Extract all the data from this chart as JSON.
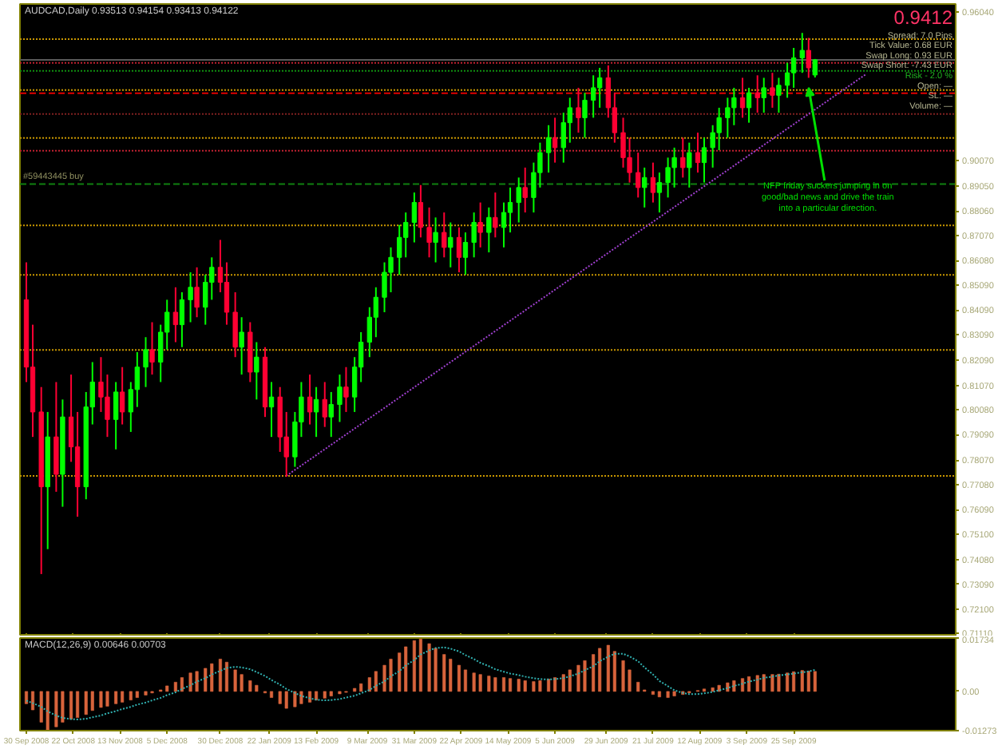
{
  "chart_data": [
    {
      "type": "candlestick",
      "title": "AUDCAD,Daily 0.93513 0.94154 0.93413 0.94122",
      "x": [
        "2008-09-30",
        "2008-10-03",
        "2008-10-07",
        "2008-10-10",
        "2008-10-14",
        "2008-10-17",
        "2008-10-21",
        "2008-10-24",
        "2008-10-28",
        "2008-10-31",
        "2008-11-04",
        "2008-11-07",
        "2008-11-11",
        "2008-11-14",
        "2008-11-18",
        "2008-11-21",
        "2008-11-25",
        "2008-11-28",
        "2008-12-02",
        "2008-12-05",
        "2008-12-09",
        "2008-12-12",
        "2008-12-16",
        "2008-12-19",
        "2008-12-23",
        "2008-12-26",
        "2008-12-30",
        "2009-01-02",
        "2009-01-06",
        "2009-01-09",
        "2009-01-13",
        "2009-01-16",
        "2009-01-20",
        "2009-01-23",
        "2009-01-27",
        "2009-01-30",
        "2009-02-03",
        "2009-02-06",
        "2009-02-10",
        "2009-02-13",
        "2009-02-17",
        "2009-02-20",
        "2009-02-24",
        "2009-02-27",
        "2009-03-03",
        "2009-03-06",
        "2009-03-10",
        "2009-03-13",
        "2009-03-17",
        "2009-03-20",
        "2009-03-24",
        "2009-03-27",
        "2009-03-31",
        "2009-04-03",
        "2009-04-07",
        "2009-04-10",
        "2009-04-14",
        "2009-04-17",
        "2009-04-21",
        "2009-04-24",
        "2009-04-28",
        "2009-05-01",
        "2009-05-05",
        "2009-05-08",
        "2009-05-12",
        "2009-05-15",
        "2009-05-19",
        "2009-05-22",
        "2009-05-26",
        "2009-05-29",
        "2009-06-02",
        "2009-06-05",
        "2009-06-09",
        "2009-06-12",
        "2009-06-16",
        "2009-06-19",
        "2009-06-23",
        "2009-06-26",
        "2009-06-30",
        "2009-07-03",
        "2009-07-07",
        "2009-07-10",
        "2009-07-14",
        "2009-07-17",
        "2009-07-21",
        "2009-07-24",
        "2009-07-28",
        "2009-07-31",
        "2009-08-04",
        "2009-08-07",
        "2009-08-11",
        "2009-08-14",
        "2009-08-18",
        "2009-08-21",
        "2009-08-25",
        "2009-08-28",
        "2009-09-01",
        "2009-09-04",
        "2009-09-08",
        "2009-09-11",
        "2009-09-15",
        "2009-09-18",
        "2009-09-22",
        "2009-09-25",
        "2009-09-29",
        "2009-10-02",
        "2009-10-05"
      ],
      "ohlc": [
        [
          0.845,
          0.86,
          0.812,
          0.818
        ],
        [
          0.818,
          0.835,
          0.79,
          0.8
        ],
        [
          0.8,
          0.81,
          0.735,
          0.77
        ],
        [
          0.77,
          0.8,
          0.745,
          0.79
        ],
        [
          0.79,
          0.812,
          0.768,
          0.775
        ],
        [
          0.775,
          0.805,
          0.762,
          0.798
        ],
        [
          0.798,
          0.815,
          0.78,
          0.786
        ],
        [
          0.786,
          0.8,
          0.758,
          0.77
        ],
        [
          0.77,
          0.808,
          0.765,
          0.802
        ],
        [
          0.802,
          0.82,
          0.795,
          0.812
        ],
        [
          0.812,
          0.822,
          0.8,
          0.806
        ],
        [
          0.806,
          0.815,
          0.79,
          0.797
        ],
        [
          0.797,
          0.812,
          0.785,
          0.808
        ],
        [
          0.808,
          0.818,
          0.795,
          0.8
        ],
        [
          0.8,
          0.812,
          0.792,
          0.809
        ],
        [
          0.809,
          0.824,
          0.802,
          0.818
        ],
        [
          0.818,
          0.83,
          0.81,
          0.825
        ],
        [
          0.825,
          0.836,
          0.815,
          0.82
        ],
        [
          0.82,
          0.835,
          0.812,
          0.832
        ],
        [
          0.832,
          0.845,
          0.825,
          0.84
        ],
        [
          0.84,
          0.85,
          0.828,
          0.835
        ],
        [
          0.835,
          0.848,
          0.826,
          0.845
        ],
        [
          0.845,
          0.856,
          0.836,
          0.85
        ],
        [
          0.85,
          0.858,
          0.838,
          0.842
        ],
        [
          0.842,
          0.855,
          0.835,
          0.852
        ],
        [
          0.852,
          0.862,
          0.845,
          0.858
        ],
        [
          0.858,
          0.869,
          0.848,
          0.852
        ],
        [
          0.852,
          0.86,
          0.835,
          0.84
        ],
        [
          0.84,
          0.848,
          0.822,
          0.826
        ],
        [
          0.826,
          0.838,
          0.815,
          0.832
        ],
        [
          0.832,
          0.836,
          0.812,
          0.816
        ],
        [
          0.816,
          0.828,
          0.805,
          0.822
        ],
        [
          0.822,
          0.826,
          0.798,
          0.802
        ],
        [
          0.802,
          0.812,
          0.79,
          0.806
        ],
        [
          0.806,
          0.81,
          0.784,
          0.79
        ],
        [
          0.79,
          0.8,
          0.774,
          0.782
        ],
        [
          0.782,
          0.8,
          0.778,
          0.796
        ],
        [
          0.796,
          0.812,
          0.79,
          0.806
        ],
        [
          0.806,
          0.815,
          0.795,
          0.8
        ],
        [
          0.8,
          0.81,
          0.79,
          0.805
        ],
        [
          0.805,
          0.812,
          0.794,
          0.798
        ],
        [
          0.798,
          0.808,
          0.79,
          0.803
        ],
        [
          0.803,
          0.815,
          0.796,
          0.81
        ],
        [
          0.81,
          0.818,
          0.8,
          0.806
        ],
        [
          0.806,
          0.822,
          0.8,
          0.818
        ],
        [
          0.818,
          0.832,
          0.812,
          0.828
        ],
        [
          0.828,
          0.842,
          0.822,
          0.838
        ],
        [
          0.838,
          0.85,
          0.83,
          0.846
        ],
        [
          0.846,
          0.86,
          0.84,
          0.856
        ],
        [
          0.856,
          0.866,
          0.848,
          0.862
        ],
        [
          0.862,
          0.875,
          0.855,
          0.87
        ],
        [
          0.87,
          0.88,
          0.862,
          0.876
        ],
        [
          0.876,
          0.888,
          0.868,
          0.884
        ],
        [
          0.884,
          0.891,
          0.87,
          0.874
        ],
        [
          0.874,
          0.882,
          0.862,
          0.868
        ],
        [
          0.868,
          0.878,
          0.86,
          0.872
        ],
        [
          0.872,
          0.88,
          0.862,
          0.866
        ],
        [
          0.866,
          0.876,
          0.858,
          0.87
        ],
        [
          0.87,
          0.874,
          0.856,
          0.862
        ],
        [
          0.862,
          0.872,
          0.855,
          0.868
        ],
        [
          0.868,
          0.88,
          0.862,
          0.876
        ],
        [
          0.876,
          0.884,
          0.866,
          0.872
        ],
        [
          0.872,
          0.882,
          0.864,
          0.878
        ],
        [
          0.878,
          0.888,
          0.87,
          0.874
        ],
        [
          0.874,
          0.884,
          0.866,
          0.88
        ],
        [
          0.88,
          0.89,
          0.872,
          0.884
        ],
        [
          0.884,
          0.894,
          0.876,
          0.89
        ],
        [
          0.89,
          0.898,
          0.88,
          0.886
        ],
        [
          0.886,
          0.9,
          0.88,
          0.896
        ],
        [
          0.896,
          0.908,
          0.89,
          0.904
        ],
        [
          0.904,
          0.915,
          0.896,
          0.91
        ],
        [
          0.91,
          0.918,
          0.9,
          0.906
        ],
        [
          0.906,
          0.92,
          0.9,
          0.916
        ],
        [
          0.916,
          0.926,
          0.908,
          0.922
        ],
        [
          0.922,
          0.93,
          0.912,
          0.918
        ],
        [
          0.918,
          0.928,
          0.91,
          0.925
        ],
        [
          0.925,
          0.935,
          0.918,
          0.93
        ],
        [
          0.93,
          0.938,
          0.922,
          0.934
        ],
        [
          0.934,
          0.939,
          0.918,
          0.922
        ],
        [
          0.922,
          0.928,
          0.908,
          0.912
        ],
        [
          0.912,
          0.918,
          0.898,
          0.902
        ],
        [
          0.902,
          0.91,
          0.892,
          0.896
        ],
        [
          0.896,
          0.904,
          0.886,
          0.89
        ],
        [
          0.89,
          0.898,
          0.882,
          0.894
        ],
        [
          0.894,
          0.9,
          0.884,
          0.888
        ],
        [
          0.888,
          0.896,
          0.88,
          0.892
        ],
        [
          0.892,
          0.902,
          0.886,
          0.898
        ],
        [
          0.898,
          0.906,
          0.89,
          0.902
        ],
        [
          0.902,
          0.91,
          0.894,
          0.898
        ],
        [
          0.898,
          0.908,
          0.89,
          0.904
        ],
        [
          0.904,
          0.912,
          0.896,
          0.9
        ],
        [
          0.9,
          0.91,
          0.892,
          0.906
        ],
        [
          0.906,
          0.915,
          0.898,
          0.912
        ],
        [
          0.912,
          0.922,
          0.905,
          0.918
        ],
        [
          0.918,
          0.926,
          0.91,
          0.922
        ],
        [
          0.922,
          0.93,
          0.915,
          0.926
        ],
        [
          0.926,
          0.934,
          0.918,
          0.922
        ],
        [
          0.922,
          0.93,
          0.916,
          0.928
        ],
        [
          0.928,
          0.935,
          0.92,
          0.926
        ],
        [
          0.926,
          0.934,
          0.92,
          0.93
        ],
        [
          0.93,
          0.936,
          0.922,
          0.927
        ],
        [
          0.927,
          0.934,
          0.92,
          0.931
        ],
        [
          0.931,
          0.94,
          0.926,
          0.936
        ],
        [
          0.936,
          0.946,
          0.93,
          0.942
        ],
        [
          0.942,
          0.952,
          0.936,
          0.945
        ],
        [
          0.945,
          0.95,
          0.934,
          0.938
        ],
        [
          0.93513,
          0.94154,
          0.93413,
          0.94122
        ]
      ],
      "colors": [
        "#ff0033",
        "#ff0033",
        "#ff0033",
        "#00ff00",
        "#ff0033",
        "#00ff00",
        "#ff0033",
        "#ff0033",
        "#00ff00",
        "#00ff00",
        "#ff0033",
        "#ff0033",
        "#00ff00",
        "#ff0033",
        "#00ff00",
        "#00ff00",
        "#00ff00",
        "#ff0033",
        "#00ff00",
        "#00ff00",
        "#ff0033",
        "#00ff00",
        "#00ff00",
        "#ff0033",
        "#00ff00",
        "#00ff00",
        "#ff0033",
        "#ff0033",
        "#ff0033",
        "#00ff00",
        "#ff0033",
        "#00ff00",
        "#ff0033",
        "#00ff00",
        "#ff0033",
        "#ff0033",
        "#00ff00",
        "#00ff00",
        "#ff0033",
        "#00ff00",
        "#ff0033",
        "#00ff00",
        "#00ff00",
        "#ff0033",
        "#00ff00",
        "#00ff00",
        "#00ff00",
        "#00ff00",
        "#00ff00",
        "#00ff00",
        "#00ff00",
        "#00ff00",
        "#00ff00",
        "#ff0033",
        "#ff0033",
        "#00ff00",
        "#ff0033",
        "#00ff00",
        "#ff0033",
        "#00ff00",
        "#00ff00",
        "#ff0033",
        "#00ff00",
        "#ff0033",
        "#00ff00",
        "#00ff00",
        "#00ff00",
        "#ff0033",
        "#00ff00",
        "#00ff00",
        "#00ff00",
        "#ff0033",
        "#00ff00",
        "#00ff00",
        "#ff0033",
        "#00ff00",
        "#00ff00",
        "#00ff00",
        "#ff0033",
        "#ff0033",
        "#ff0033",
        "#ff0033",
        "#ff0033",
        "#00ff00",
        "#ff0033",
        "#00ff00",
        "#00ff00",
        "#00ff00",
        "#ff0033",
        "#00ff00",
        "#ff0033",
        "#00ff00",
        "#00ff00",
        "#00ff00",
        "#00ff00",
        "#00ff00",
        "#ff0033",
        "#00ff00",
        "#ff0033",
        "#00ff00",
        "#ff0033",
        "#00ff00",
        "#00ff00",
        "#00ff00",
        "#00ff00",
        "#ff0033",
        "#00ff00"
      ],
      "xlim": [
        "2008-09-27",
        "2009-12-10"
      ],
      "ylim": [
        0.71,
        0.9636
      ],
      "xticks": [
        {
          "value": "2008-09-30",
          "label": null
        },
        {
          "value": "2008-10-22",
          "label": null
        },
        {
          "value": "2008-11-13",
          "label": null
        },
        {
          "value": "2008-12-05",
          "label": null
        },
        {
          "value": "2008-12-30",
          "label": null
        },
        {
          "value": "2009-01-22",
          "label": null
        },
        {
          "value": "2009-02-13",
          "label": null
        },
        {
          "value": "2009-03-09",
          "label": null
        },
        {
          "value": "2009-03-31",
          "label": null
        },
        {
          "value": "2009-04-22",
          "label": null
        },
        {
          "value": "2009-05-14",
          "label": null
        },
        {
          "value": "2009-06-05",
          "label": null
        },
        {
          "value": "2009-06-29",
          "label": null
        },
        {
          "value": "2009-07-21",
          "label": null
        },
        {
          "value": "2009-08-12",
          "label": null
        },
        {
          "value": "2009-09-03",
          "label": null
        },
        {
          "value": "2009-09-25",
          "label": null
        }
      ],
      "yticks": [
        {
          "value": 0.9604,
          "label": "0.96040"
        },
        {
          "value": 0.9007,
          "label": "0.90070"
        },
        {
          "value": 0.8905,
          "label": "0.89050"
        },
        {
          "value": 0.8806,
          "label": "0.88060"
        },
        {
          "value": 0.8707,
          "label": "0.87070"
        },
        {
          "value": 0.8608,
          "label": "0.86080"
        },
        {
          "value": 0.8509,
          "label": "0.85090"
        },
        {
          "value": 0.8409,
          "label": "0.84090"
        },
        {
          "value": 0.8309,
          "label": "0.83090"
        },
        {
          "value": 0.8209,
          "label": "0.82090"
        },
        {
          "value": 0.8107,
          "label": "0.81070"
        },
        {
          "value": 0.8008,
          "label": "0.80080"
        },
        {
          "value": 0.7909,
          "label": "0.79090"
        },
        {
          "value": 0.7807,
          "label": "0.78070"
        },
        {
          "value": 0.7708,
          "label": "0.77080"
        },
        {
          "value": 0.7609,
          "label": "0.76090"
        },
        {
          "value": 0.751,
          "label": "0.75100"
        },
        {
          "value": 0.7408,
          "label": "0.74080"
        },
        {
          "value": 0.7309,
          "label": "0.73090"
        },
        {
          "value": 0.721,
          "label": "0.72100"
        },
        {
          "value": 0.7111,
          "label": "0.71110"
        }
      ],
      "tick_labels": "y",
      "ref_lines": [
        {
          "axis": "y",
          "value": 0.9495,
          "color": "#c89600",
          "line_style": "dotted"
        },
        {
          "axis": "y",
          "value": 0.9412,
          "color": "#5a5a5a",
          "line_style": "solid"
        },
        {
          "axis": "y",
          "value": 0.94,
          "color": "#c02030",
          "line_style": "dotted"
        },
        {
          "axis": "y",
          "value": 0.9368,
          "color": "#109010",
          "line_style": "dotted"
        },
        {
          "axis": "y",
          "value": 0.9291,
          "color": "#c89600",
          "line_style": "dotted"
        },
        {
          "axis": "y",
          "value": 0.9278,
          "color": "#e00000",
          "line_style": "dashed"
        },
        {
          "axis": "y",
          "value": 0.9195,
          "color": "#802020",
          "line_style": "dotted"
        },
        {
          "axis": "y",
          "value": 0.9099,
          "color": "#c89600",
          "line_style": "dotted"
        },
        {
          "axis": "y",
          "value": 0.9048,
          "color": "#c02030",
          "line_style": "dotted"
        },
        {
          "axis": "y",
          "value": 0.8914,
          "color": "#108010",
          "line_style": "dashed",
          "label": "#59443445 buy"
        },
        {
          "axis": "y",
          "value": 0.8748,
          "color": "#c89600",
          "line_style": "dotted"
        },
        {
          "axis": "y",
          "value": 0.855,
          "color": "#c89600",
          "line_style": "dotted"
        },
        {
          "axis": "y",
          "value": 0.8249,
          "color": "#c89600",
          "line_style": "dotted"
        },
        {
          "axis": "y",
          "value": 0.7744,
          "color": "#c89600",
          "line_style": "dotted"
        }
      ],
      "series": [
        {
          "type": "line",
          "x": [
            "2009-01-30",
            "2009-10-29"
          ],
          "values": [
            0.7744,
            0.9355
          ],
          "color": "#a040d0",
          "line_style": "dotted"
        }
      ],
      "annotations": [
        "0.9412",
        "Spread: 7.0 Pips",
        "Tick Value: 0.68 EUR",
        "Swap Long: 0.93 EUR",
        "Swap Short: -7.43 EUR",
        "Risk - 2.0 %",
        "Open: —",
        "SL: —",
        "Volume: —",
        {
          "text": "NFP friday suckers jumping in on good/bad news and drive the train into a particular direction.",
          "x": "2009-10-02",
          "y": 0.93
        }
      ]
    },
    {
      "type": "bar",
      "title": "MACD(12,26,9) 0.00646 0.00703",
      "x": [
        "2008-09-30",
        "2008-10-03",
        "2008-10-07",
        "2008-10-10",
        "2008-10-14",
        "2008-10-17",
        "2008-10-21",
        "2008-10-24",
        "2008-10-28",
        "2008-10-31",
        "2008-11-04",
        "2008-11-07",
        "2008-11-11",
        "2008-11-14",
        "2008-11-18",
        "2008-11-21",
        "2008-11-25",
        "2008-11-28",
        "2008-12-02",
        "2008-12-05",
        "2008-12-09",
        "2008-12-12",
        "2008-12-16",
        "2008-12-19",
        "2008-12-23",
        "2008-12-26",
        "2008-12-30",
        "2009-01-02",
        "2009-01-06",
        "2009-01-09",
        "2009-01-13",
        "2009-01-16",
        "2009-01-20",
        "2009-01-23",
        "2009-01-27",
        "2009-01-30",
        "2009-02-03",
        "2009-02-06",
        "2009-02-10",
        "2009-02-13",
        "2009-02-17",
        "2009-02-20",
        "2009-02-24",
        "2009-02-27",
        "2009-03-03",
        "2009-03-06",
        "2009-03-10",
        "2009-03-13",
        "2009-03-17",
        "2009-03-20",
        "2009-03-24",
        "2009-03-27",
        "2009-03-31",
        "2009-04-03",
        "2009-04-07",
        "2009-04-10",
        "2009-04-14",
        "2009-04-17",
        "2009-04-21",
        "2009-04-24",
        "2009-04-28",
        "2009-05-01",
        "2009-05-05",
        "2009-05-08",
        "2009-05-12",
        "2009-05-15",
        "2009-05-19",
        "2009-05-22",
        "2009-05-26",
        "2009-05-29",
        "2009-06-02",
        "2009-06-05",
        "2009-06-09",
        "2009-06-12",
        "2009-06-16",
        "2009-06-19",
        "2009-06-23",
        "2009-06-26",
        "2009-06-30",
        "2009-07-03",
        "2009-07-07",
        "2009-07-10",
        "2009-07-14",
        "2009-07-17",
        "2009-07-21",
        "2009-07-24",
        "2009-07-28",
        "2009-07-31",
        "2009-08-04",
        "2009-08-07",
        "2009-08-11",
        "2009-08-14",
        "2009-08-18",
        "2009-08-21",
        "2009-08-25",
        "2009-08-28",
        "2009-09-01",
        "2009-09-04",
        "2009-09-08",
        "2009-09-11",
        "2009-09-15",
        "2009-09-18",
        "2009-09-22",
        "2009-09-25",
        "2009-09-29",
        "2009-10-02",
        "2009-10-05"
      ],
      "series": [
        {
          "type": "bar",
          "color": "#d8643c",
          "values": [
            -0.004,
            -0.006,
            -0.01,
            -0.0125,
            -0.0115,
            -0.01,
            -0.009,
            -0.0085,
            -0.0075,
            -0.0062,
            -0.0052,
            -0.0048,
            -0.004,
            -0.0035,
            -0.0028,
            -0.002,
            -0.0012,
            -0.0005,
            0.0005,
            0.0018,
            0.003,
            0.0045,
            0.006,
            0.0065,
            0.0075,
            0.009,
            0.0105,
            0.0095,
            0.007,
            0.0055,
            0.0035,
            0.002,
            -0.0005,
            -0.002,
            -0.004,
            -0.0055,
            -0.005,
            -0.004,
            -0.0035,
            -0.0028,
            -0.0022,
            -0.0015,
            -0.0008,
            -0.0003,
            0.001,
            0.0025,
            0.0045,
            0.0065,
            0.0085,
            0.0105,
            0.0125,
            0.0145,
            0.0165,
            0.017,
            0.0155,
            0.014,
            0.012,
            0.0105,
            0.0085,
            0.007,
            0.006,
            0.0055,
            0.005,
            0.0045,
            0.0045,
            0.0042,
            0.004,
            0.0035,
            0.0032,
            0.0035,
            0.004,
            0.0045,
            0.0055,
            0.007,
            0.0085,
            0.01,
            0.012,
            0.014,
            0.015,
            0.013,
            0.01,
            0.007,
            0.003,
            0.0005,
            -0.001,
            -0.0018,
            -0.002,
            -0.0015,
            -0.001,
            -0.0005,
            0.0003,
            0.0008,
            0.0012,
            0.002,
            0.0028,
            0.0035,
            0.0042,
            0.0048,
            0.0052,
            0.0055,
            0.0055,
            0.0056,
            0.006,
            0.0064,
            0.0068,
            0.0066,
            0.0065
          ]
        },
        {
          "type": "line",
          "color": "#30b0b0",
          "line_style": "dotted",
          "values": [
            -0.003,
            -0.0038,
            -0.005,
            -0.0065,
            -0.0078,
            -0.0086,
            -0.009,
            -0.0091,
            -0.0089,
            -0.0084,
            -0.0078,
            -0.0071,
            -0.0064,
            -0.0057,
            -0.005,
            -0.0043,
            -0.0036,
            -0.0029,
            -0.0021,
            -0.0012,
            -0.0003,
            0.0008,
            0.002,
            0.0032,
            0.0043,
            0.0055,
            0.0067,
            0.0076,
            0.008,
            0.0078,
            0.0072,
            0.0063,
            0.005,
            0.0037,
            0.0022,
            0.0008,
            -0.0005,
            -0.0015,
            -0.0022,
            -0.0027,
            -0.0029,
            -0.0028,
            -0.0025,
            -0.002,
            -0.0014,
            -0.0006,
            0.0005,
            0.0018,
            0.0033,
            0.0049,
            0.0066,
            0.0084,
            0.0102,
            0.012,
            0.0133,
            0.0141,
            0.0143,
            0.0139,
            0.013,
            0.0118,
            0.0105,
            0.0093,
            0.0082,
            0.0072,
            0.0064,
            0.0058,
            0.0053,
            0.0048,
            0.0043,
            0.004,
            0.0039,
            0.004,
            0.0043,
            0.0049,
            0.0058,
            0.0069,
            0.0082,
            0.0098,
            0.0113,
            0.0122,
            0.0122,
            0.0114,
            0.0098,
            0.0078,
            0.0055,
            0.0034,
            0.0017,
            0.0004,
            -0.0005,
            -0.0009,
            -0.0009,
            -0.0006,
            -0.0002,
            0.0004,
            0.0011,
            0.0018,
            0.0025,
            0.0032,
            0.0038,
            0.0044,
            0.0048,
            0.0052,
            0.0055,
            0.0058,
            0.0062,
            0.0065,
            0.007
          ]
        }
      ],
      "xlim": [
        "2008-09-27",
        "2009-12-10"
      ],
      "ylim": [
        -0.01273,
        0.01734
      ],
      "yticks": [
        0.01734,
        {
          "value": 0,
          "label": "0.00"
        },
        -0.01273
      ],
      "xticks": [
        {
          "value": "2008-09-30",
          "label": "30 Sep 2008"
        },
        {
          "value": "2008-10-22",
          "label": "22 Oct 2008"
        },
        {
          "value": "2008-11-13",
          "label": "13 Nov 2008"
        },
        {
          "value": "2008-12-05",
          "label": "5 Dec 2008"
        },
        {
          "value": "2008-12-30",
          "label": "30 Dec 2008"
        },
        {
          "value": "2009-01-22",
          "label": "22 Jan 2009"
        },
        {
          "value": "2009-02-13",
          "label": "13 Feb 2009"
        },
        {
          "value": "2009-03-09",
          "label": "9 Mar 2009"
        },
        {
          "value": "2009-03-31",
          "label": "31 Mar 2009"
        },
        {
          "value": "2009-04-22",
          "label": "22 Apr 2009"
        },
        {
          "value": "2009-05-14",
          "label": "14 May 2009"
        },
        {
          "value": "2009-06-05",
          "label": "5 Jun 2009"
        },
        {
          "value": "2009-06-29",
          "label": "29 Jun 2009"
        },
        {
          "value": "2009-07-21",
          "label": "21 Jul 2009"
        },
        {
          "value": "2009-08-12",
          "label": "12 Aug 2009"
        },
        {
          "value": "2009-09-03",
          "label": "3 Sep 2009"
        },
        {
          "value": "2009-09-25",
          "label": "25 Sep 2009"
        }
      ]
    }
  ]
}
